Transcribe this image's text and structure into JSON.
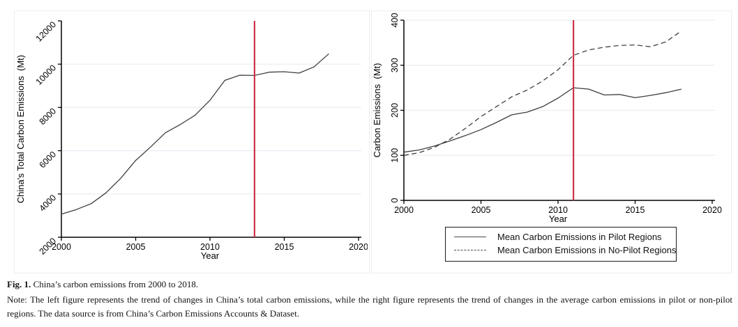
{
  "caption": {
    "fig_label": "Fig. 1.",
    "title": "China’s carbon emissions from 2000 to 2018.",
    "note": "Note: The left figure represents the trend of changes in China’s total carbon emissions, while the right figure represents the trend of changes in the average carbon emissions in pilot or non-pilot regions. The data source is from China’s Carbon Emissions Accounts & Dataset."
  },
  "colors": {
    "line": "#3e3e3e",
    "vline": "#cc3347",
    "grid": "#e7edf2",
    "axis": "#000000",
    "text": "#000000"
  },
  "chart_data": [
    {
      "id": "total-emissions-chart",
      "type": "line",
      "xlabel": "Year",
      "ylabel": "China's Total Carbon Emissions  (Mt)",
      "xlim": [
        2000,
        2020
      ],
      "ylim": [
        2000,
        12000
      ],
      "x_ticks": [
        2000,
        2005,
        2010,
        2015,
        2020
      ],
      "y_ticks": [
        2000,
        4000,
        6000,
        8000,
        10000,
        12000
      ],
      "grid_y": [
        4000,
        6000,
        8000,
        10000
      ],
      "y_tick_angle": 45,
      "grid": "on",
      "vline_x": 2013,
      "x": [
        2000,
        2001,
        2002,
        2003,
        2004,
        2005,
        2006,
        2007,
        2008,
        2009,
        2010,
        2011,
        2012,
        2013,
        2014,
        2015,
        2016,
        2017,
        2018
      ],
      "series": [
        {
          "id": "total",
          "name": "China's Total Carbon Emissions",
          "style": "solid",
          "values": [
            3070,
            3280,
            3550,
            4050,
            4730,
            5550,
            6170,
            6830,
            7210,
            7640,
            8330,
            9250,
            9490,
            9480,
            9630,
            9650,
            9590,
            9870,
            10480
          ]
        }
      ],
      "legend": "none"
    },
    {
      "id": "pilot-vs-nopilot-chart",
      "type": "line",
      "xlabel": "Year",
      "ylabel": "Carbon Emissions  (Mt)",
      "xlim": [
        2000,
        2020
      ],
      "ylim": [
        0,
        400
      ],
      "x_ticks": [
        2000,
        2005,
        2010,
        2015,
        2020
      ],
      "y_ticks": [
        0,
        100,
        200,
        300,
        400
      ],
      "grid_y": [
        100,
        200,
        300,
        400
      ],
      "y_tick_angle": 90,
      "grid": "on",
      "vline_x": 2011,
      "x": [
        2000,
        2001,
        2002,
        2003,
        2004,
        2005,
        2006,
        2007,
        2008,
        2009,
        2010,
        2011,
        2012,
        2013,
        2014,
        2015,
        2016,
        2017,
        2018
      ],
      "series": [
        {
          "id": "pilot",
          "name": "Mean Carbon Emissions in Pilot Regions",
          "style": "solid",
          "values": [
            107,
            112,
            121,
            132,
            144,
            157,
            173,
            190,
            196,
            208,
            227,
            250,
            247,
            234,
            235,
            228,
            233,
            239,
            247
          ]
        },
        {
          "id": "no_pilot",
          "name": "Mean Carbon Emissions in No-Pilot Regions",
          "style": "dashed",
          "values": [
            100,
            106,
            118,
            136,
            160,
            186,
            208,
            230,
            245,
            265,
            290,
            322,
            334,
            340,
            344,
            345,
            341,
            352,
            376
          ]
        }
      ],
      "legend": "below"
    }
  ]
}
